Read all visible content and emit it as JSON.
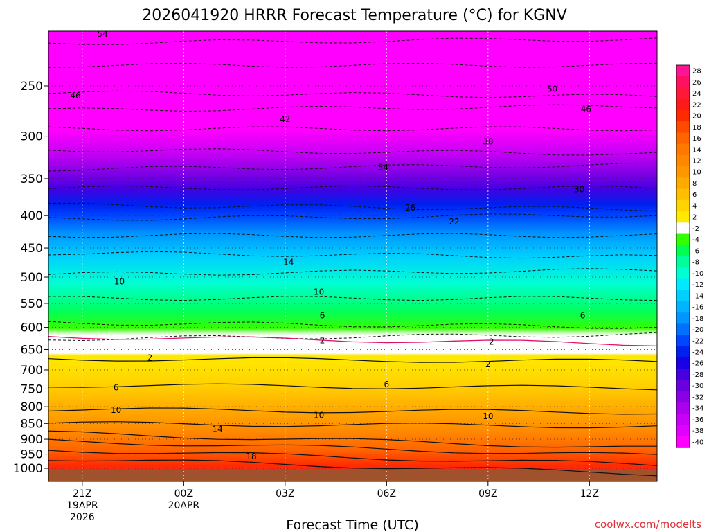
{
  "chart_data": {
    "type": "heatmap",
    "title": "2026041920 HRRR Forecast Temperature (°C) for KGNV",
    "xlabel": "Forecast Time (UTC)",
    "ylabel": "",
    "credit": "coolwx.com/modelts",
    "x_ticks": [
      {
        "hour": 1,
        "lines": [
          "21Z",
          "19APR",
          "2026"
        ]
      },
      {
        "hour": 4,
        "lines": [
          "00Z",
          "20APR"
        ]
      },
      {
        "hour": 7,
        "lines": [
          "03Z"
        ]
      },
      {
        "hour": 10,
        "lines": [
          "06Z"
        ]
      },
      {
        "hour": 13,
        "lines": [
          "09Z"
        ]
      },
      {
        "hour": 16,
        "lines": [
          "12Z"
        ]
      }
    ],
    "x_range_hours": [
      0,
      18
    ],
    "y_ticks": [
      250,
      300,
      350,
      400,
      450,
      500,
      550,
      600,
      650,
      700,
      750,
      800,
      850,
      900,
      950,
      1000
    ],
    "y_range_hpa": [
      200,
      1000
    ],
    "colorbar_ticks": [
      28,
      26,
      24,
      22,
      20,
      18,
      16,
      14,
      12,
      10,
      8,
      6,
      4,
      2,
      -2,
      -4,
      -6,
      -8,
      -10,
      -12,
      -14,
      -16,
      -18,
      -20,
      -22,
      -24,
      -26,
      -28,
      -30,
      -32,
      -34,
      -36,
      -38,
      -40
    ],
    "colorbar_colors": [
      "#ff1493",
      "#ff1060",
      "#ff1838",
      "#ff1a1a",
      "#ff2b00",
      "#ff4a00",
      "#ff6400",
      "#ff7800",
      "#ff8800",
      "#ff9800",
      "#ffaa00",
      "#ffbf00",
      "#ffd400",
      "#ffea00",
      "#ffffff",
      "#34ff00",
      "#00ff50",
      "#00ff9a",
      "#00ffd2",
      "#00eaff",
      "#00cfff",
      "#00b4ff",
      "#0096ff",
      "#0070ff",
      "#0046ff",
      "#0020f0",
      "#1a00e6",
      "#4400e0",
      "#6a00e0",
      "#8a00e6",
      "#aa00ee",
      "#c800f5",
      "#e000ff",
      "#ff00ff"
    ],
    "contour_labels": [
      {
        "text": "54",
        "hour": 1.6,
        "p": 207
      },
      {
        "text": "46",
        "hour": 0.8,
        "p": 259
      },
      {
        "text": "42",
        "hour": 7.0,
        "p": 282
      },
      {
        "text": "50",
        "hour": 14.9,
        "p": 253
      },
      {
        "text": "46",
        "hour": 15.9,
        "p": 272
      },
      {
        "text": "38",
        "hour": 13.0,
        "p": 306
      },
      {
        "text": "34",
        "hour": 9.9,
        "p": 336
      },
      {
        "text": "30",
        "hour": 15.7,
        "p": 364
      },
      {
        "text": "26",
        "hour": 10.7,
        "p": 389
      },
      {
        "text": "22",
        "hour": 12.0,
        "p": 409
      },
      {
        "text": "14",
        "hour": 7.1,
        "p": 474
      },
      {
        "text": "10",
        "hour": 2.1,
        "p": 508
      },
      {
        "text": "10",
        "hour": 8.0,
        "p": 528
      },
      {
        "text": "6",
        "hour": 8.1,
        "p": 575
      },
      {
        "text": "6",
        "hour": 15.8,
        "p": 575
      },
      {
        "text": "2",
        "hour": 8.1,
        "p": 629
      },
      {
        "text": "2",
        "hour": 13.1,
        "p": 632
      },
      {
        "text": "2",
        "hour": 3.0,
        "p": 670
      },
      {
        "text": "2",
        "hour": 13.0,
        "p": 686
      },
      {
        "text": "6",
        "hour": 2.0,
        "p": 746
      },
      {
        "text": "6",
        "hour": 10.0,
        "p": 738
      },
      {
        "text": "10",
        "hour": 2.0,
        "p": 810
      },
      {
        "text": "10",
        "hour": 8.0,
        "p": 825
      },
      {
        "text": "10",
        "hour": 13.0,
        "p": 828
      },
      {
        "text": "14",
        "hour": 5.0,
        "p": 868
      },
      {
        "text": "18",
        "hour": 6.0,
        "p": 958
      }
    ]
  }
}
